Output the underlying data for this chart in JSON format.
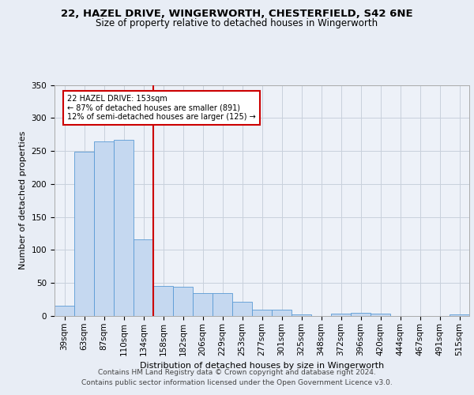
{
  "title1": "22, HAZEL DRIVE, WINGERWORTH, CHESTERFIELD, S42 6NE",
  "title2": "Size of property relative to detached houses in Wingerworth",
  "xlabel": "Distribution of detached houses by size in Wingerworth",
  "ylabel": "Number of detached properties",
  "categories": [
    "39sqm",
    "63sqm",
    "87sqm",
    "110sqm",
    "134sqm",
    "158sqm",
    "182sqm",
    "206sqm",
    "229sqm",
    "253sqm",
    "277sqm",
    "301sqm",
    "325sqm",
    "348sqm",
    "372sqm",
    "396sqm",
    "420sqm",
    "444sqm",
    "467sqm",
    "491sqm",
    "515sqm"
  ],
  "values": [
    16,
    249,
    265,
    267,
    116,
    45,
    44,
    35,
    35,
    22,
    9,
    9,
    2,
    0,
    4,
    5,
    3,
    0,
    0,
    0,
    2
  ],
  "bar_color": "#c5d8f0",
  "bar_edge_color": "#5a9ad5",
  "marker_line_color": "#cc0000",
  "annotation_line1": "22 HAZEL DRIVE: 153sqm",
  "annotation_line2": "← 87% of detached houses are smaller (891)",
  "annotation_line3": "12% of semi-detached houses are larger (125) →",
  "annotation_box_color": "#ffffff",
  "annotation_box_edge": "#cc0000",
  "ylim": [
    0,
    350
  ],
  "yticks": [
    0,
    50,
    100,
    150,
    200,
    250,
    300,
    350
  ],
  "grid_color": "#c8d0dc",
  "bg_color": "#e8edf5",
  "plot_bg_color": "#edf1f8",
  "footer1": "Contains HM Land Registry data © Crown copyright and database right 2024.",
  "footer2": "Contains public sector information licensed under the Open Government Licence v3.0.",
  "title1_fontsize": 9.5,
  "title2_fontsize": 8.5,
  "xlabel_fontsize": 8,
  "ylabel_fontsize": 8,
  "tick_fontsize": 7.5,
  "footer_fontsize": 6.5
}
